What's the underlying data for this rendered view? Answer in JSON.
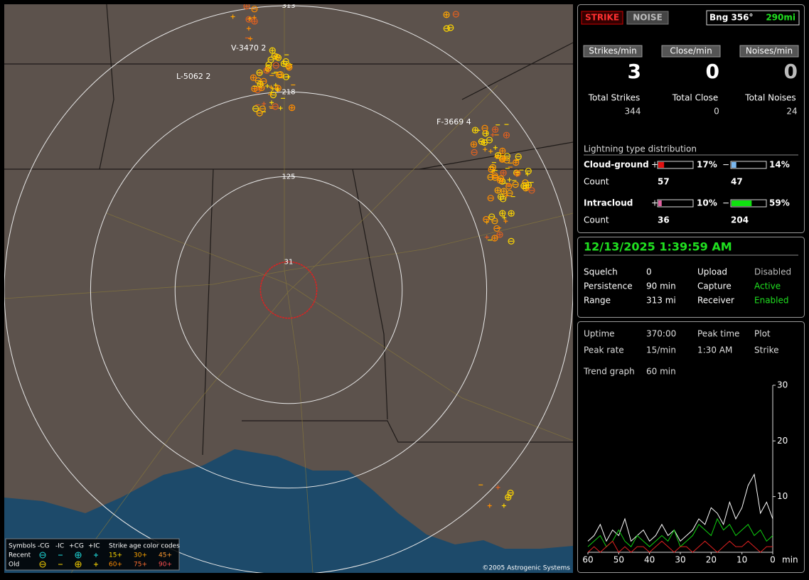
{
  "map": {
    "range_rings": [
      31,
      125,
      218,
      313
    ],
    "storm_labels": [
      "V-3470 2",
      "L-5062 2",
      "F-3669 4"
    ],
    "legend": {
      "symbols": "Symbols",
      "types": [
        "-CG",
        "-IC",
        "+CG",
        "+IC"
      ],
      "age_title": "Strike age color codes",
      "rows": [
        "Recent",
        "Old"
      ],
      "recent_ages": [
        "15+",
        "30+",
        "45+"
      ],
      "old_ages": [
        "60+",
        "75+",
        "90+"
      ]
    },
    "copyright": "©2005 Astrogenic Systems"
  },
  "header": {
    "strike_button": "STRIKE",
    "noise_button": "NOISE",
    "bearing": "Bng 356°",
    "distance": "290mi"
  },
  "rates": {
    "labels": [
      "Strikes/min",
      "Close/min",
      "Noises/min"
    ],
    "values": [
      3,
      0,
      0
    ]
  },
  "totals": {
    "labels": [
      "Total Strikes",
      "Total Close",
      "Total Noises"
    ],
    "values": [
      344,
      0,
      24
    ]
  },
  "distribution": {
    "title": "Lightning type distribution",
    "count_label": "Count",
    "rows": [
      {
        "name": "Cloud-ground",
        "plus_sign": "+",
        "minus_sign": "−",
        "plus_pct": {
          "value": 17,
          "label": "17%"
        },
        "minus_pct": {
          "value": 14,
          "label": "14%"
        },
        "plus_count": 57,
        "minus_count": 47,
        "plus_color": "#e01010",
        "minus_color": "#7ab8f0"
      },
      {
        "name": "Intracloud",
        "plus_sign": "+",
        "minus_sign": "−",
        "plus_pct": {
          "value": 10,
          "label": "10%"
        },
        "minus_pct": {
          "value": 59,
          "label": "59%"
        },
        "plus_count": 36,
        "minus_count": 204,
        "plus_color": "#e060a0",
        "minus_color": "#10e010"
      }
    ]
  },
  "status": {
    "datetime": "12/13/2025 1:39:59 AM",
    "rows": [
      [
        "Squelch",
        "0",
        "Upload",
        "Disabled"
      ],
      [
        "Persistence",
        "90 min",
        "Capture",
        "Active"
      ],
      [
        "Range",
        "313 mi",
        "Receiver",
        "Enabled"
      ]
    ]
  },
  "stats": {
    "rows": [
      [
        "Uptime",
        "370:00",
        "Peak time",
        "Plot"
      ],
      [
        "Peak rate",
        "15/min",
        "1:30 AM",
        "Strike"
      ]
    ],
    "trend_label": "Trend graph",
    "trend_value": "60 min"
  },
  "trend_graph": {
    "type": "line",
    "x_unit": "min",
    "xlim": [
      60,
      0
    ],
    "ylim": [
      0,
      30
    ],
    "xticks": [
      60,
      50,
      40,
      30,
      20,
      10,
      0
    ],
    "yticks": [
      10,
      20,
      30
    ],
    "x": [
      60,
      58,
      56,
      54,
      52,
      50,
      48,
      46,
      44,
      42,
      40,
      38,
      36,
      34,
      32,
      30,
      28,
      26,
      24,
      22,
      20,
      18,
      16,
      14,
      12,
      10,
      8,
      6,
      4,
      2,
      0
    ],
    "series": [
      {
        "color": "#ffffff",
        "values": [
          2,
          3,
          5,
          2,
          4,
          3,
          6,
          2,
          3,
          4,
          2,
          3,
          5,
          3,
          4,
          2,
          3,
          4,
          6,
          5,
          8,
          7,
          5,
          9,
          6,
          8,
          12,
          14,
          7,
          9,
          6
        ]
      },
      {
        "color": "#10d010",
        "values": [
          1,
          2,
          3,
          1,
          2,
          4,
          2,
          1,
          3,
          2,
          1,
          2,
          3,
          2,
          4,
          1,
          2,
          3,
          5,
          4,
          3,
          6,
          4,
          5,
          3,
          4,
          5,
          3,
          4,
          2,
          3
        ]
      },
      {
        "color": "#e02020",
        "values": [
          0,
          1,
          0,
          1,
          2,
          0,
          1,
          0,
          1,
          1,
          0,
          1,
          2,
          1,
          0,
          1,
          1,
          0,
          1,
          2,
          1,
          0,
          1,
          2,
          1,
          1,
          2,
          1,
          0,
          1,
          1
        ]
      }
    ]
  }
}
